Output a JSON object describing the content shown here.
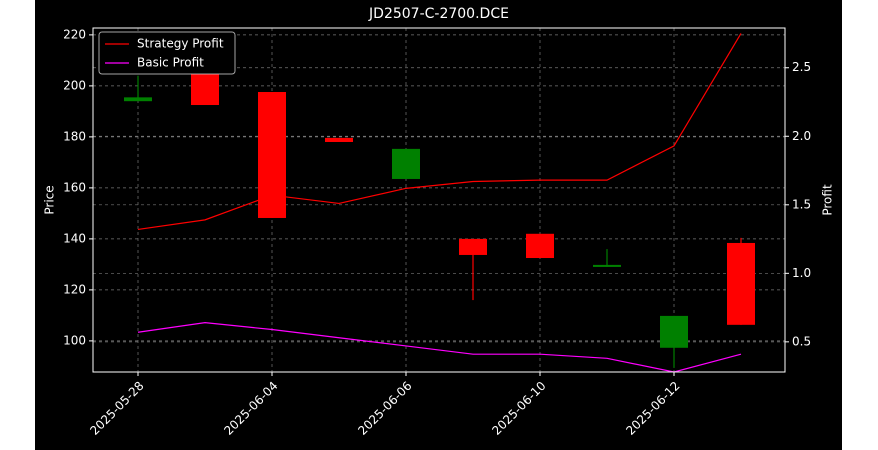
{
  "chart_data": {
    "type": "candlestick",
    "title": "JD2507-C-2700.DCE",
    "ylabel": "Price",
    "y2label": "Profit",
    "categories": [
      "2025-05-28",
      null,
      "2025-06-04",
      null,
      "2025-06-06",
      null,
      "2025-06-10",
      null,
      "2025-06-12",
      null
    ],
    "open": [
      194,
      218,
      197.6,
      179.6,
      163.5,
      140,
      142,
      129,
      97.3,
      138.4
    ],
    "high": [
      204,
      218,
      197.6,
      179.6,
      175.3,
      140,
      142,
      136,
      109.8,
      140.4
    ],
    "low": [
      194,
      192.5,
      148.2,
      178,
      163.5,
      116,
      132.5,
      129,
      89.4,
      106.3
    ],
    "close": [
      195.5,
      192.5,
      148.2,
      178,
      175.3,
      133.7,
      132.5,
      129.8,
      109.8,
      106.3
    ],
    "up_color": "#008000",
    "down_color": "#ff0000",
    "series": [
      {
        "name": "Strategy Profit",
        "color": "#ff0000",
        "axis": "y2",
        "values": [
          1.32,
          1.39,
          1.57,
          1.51,
          1.62,
          1.67,
          1.68,
          1.68,
          1.93,
          2.75
        ]
      },
      {
        "name": "Basic Profit",
        "color": "#ff00ff",
        "axis": "y2",
        "values": [
          0.57,
          0.64,
          0.59,
          0.53,
          0.47,
          0.41,
          0.41,
          0.38,
          0.28,
          0.41
        ]
      }
    ],
    "ylim": [
      87.8,
      222.7
    ],
    "yticks": [
      100,
      120,
      140,
      160,
      180,
      200,
      220
    ],
    "y2lim": [
      0.28,
      2.79
    ],
    "y2ticks": [
      {
        "value": 0.5,
        "label": "0.5"
      },
      {
        "value": 1.0,
        "label": "1.0"
      },
      {
        "value": 1.5,
        "label": "1.5"
      },
      {
        "value": 2.0,
        "label": "2.0"
      },
      {
        "value": 2.5,
        "label": "2.5"
      }
    ],
    "grid": true,
    "legend": "upper-left"
  }
}
